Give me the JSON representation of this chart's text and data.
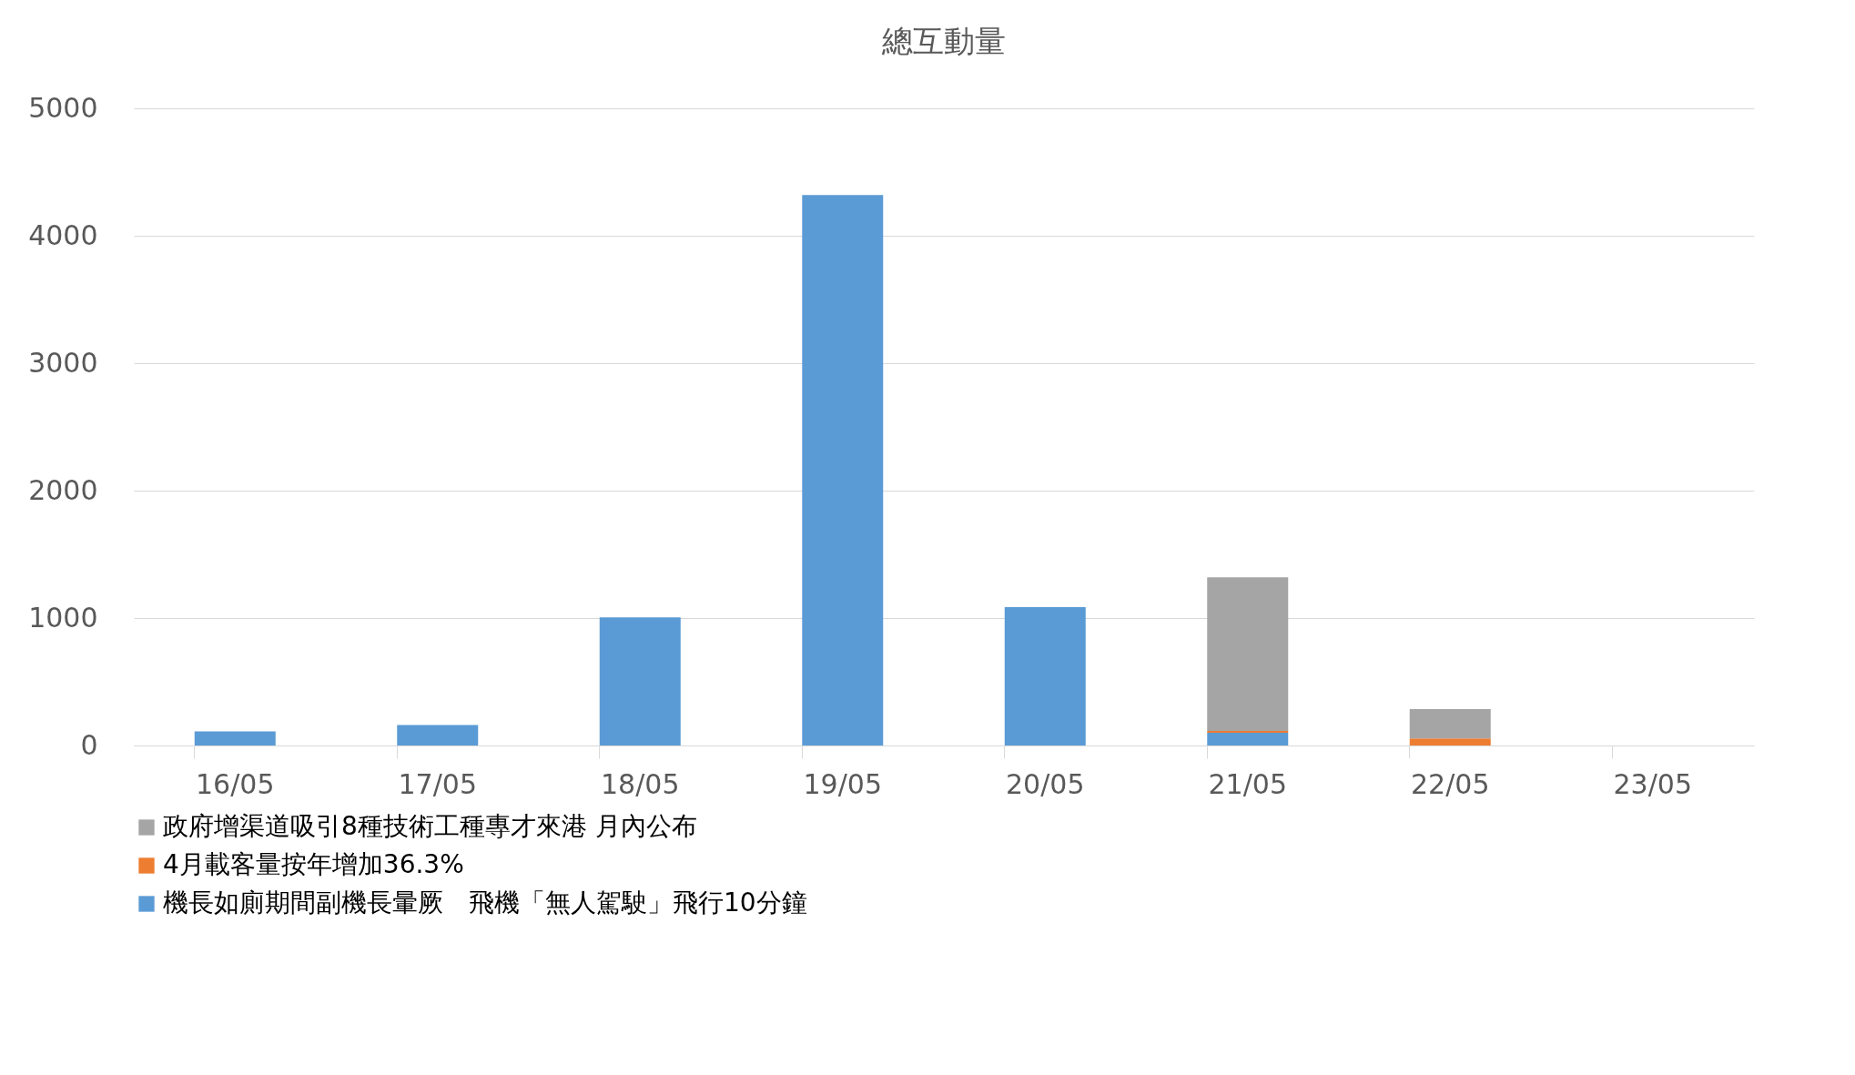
{
  "chart_data": {
    "type": "bar",
    "title": "總互動量",
    "stacked": true,
    "categories": [
      "16/05",
      "17/05",
      "18/05",
      "19/05",
      "20/05",
      "21/05",
      "22/05",
      "23/05"
    ],
    "series": [
      {
        "name": "機長如廁期間副機長暈厥　飛機「無人駕駛」飛行10分鐘",
        "color": "#5b9bd5",
        "values": [
          110,
          160,
          1005,
          4320,
          1085,
          100,
          0,
          0
        ]
      },
      {
        "name": "4月載客量按年增加36.3%",
        "color": "#ed7d31",
        "values": [
          0,
          0,
          0,
          0,
          0,
          15,
          55,
          0
        ]
      },
      {
        "name": "政府增渠道吸引8種技術工種專才來港 月內公布",
        "color": "#a5a5a5",
        "values": [
          0,
          0,
          0,
          0,
          0,
          1205,
          230,
          0
        ]
      }
    ],
    "ylim": [
      0,
      5000
    ],
    "yticks": [
      0,
      1000,
      2000,
      3000,
      4000,
      5000
    ],
    "grid": "y",
    "legend": "bottom"
  }
}
